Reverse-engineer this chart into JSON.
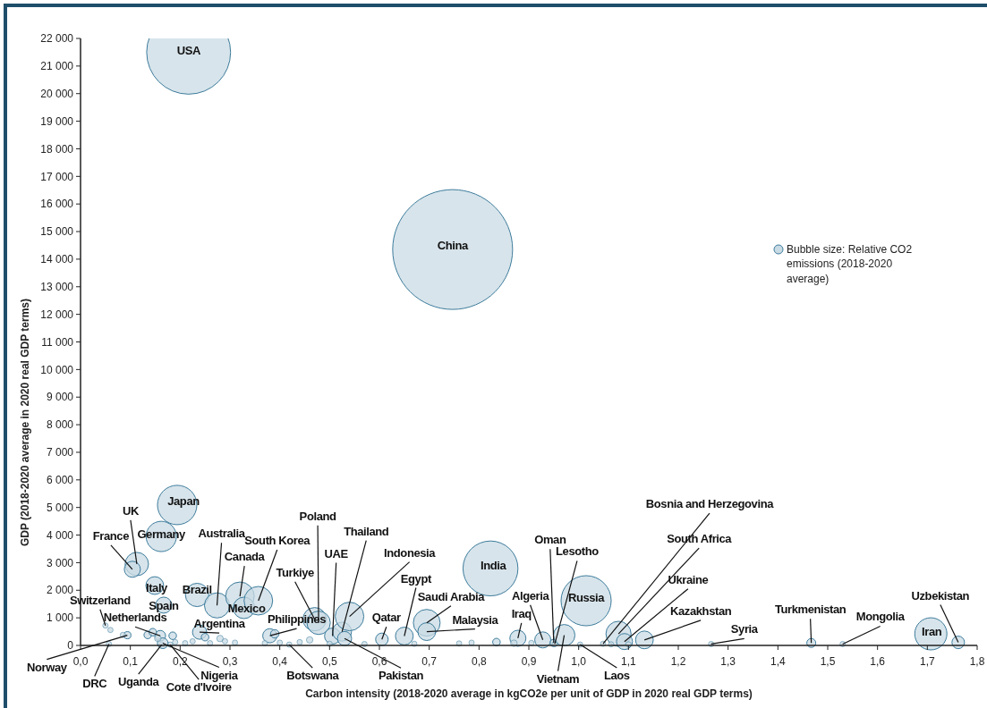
{
  "chart_data": {
    "type": "bubble",
    "xlabel": "Carbon intensity (2018-2020 average in kgCO2e per unit of GDP in 2020 real GDP terms)",
    "ylabel": "GDP (2018-2020 average in 2020 real GDP terms)",
    "xlim": [
      0,
      1.8
    ],
    "ylim": [
      0,
      22000
    ],
    "xticks": [
      {
        "value": 0,
        "label": "0,0"
      },
      {
        "value": 0.1,
        "label": "0,1"
      },
      {
        "value": 0.2,
        "label": "0,2"
      },
      {
        "value": 0.3,
        "label": "0,3"
      },
      {
        "value": 0.4,
        "label": "0,4"
      },
      {
        "value": 0.5,
        "label": "0,5"
      },
      {
        "value": 0.6,
        "label": "0,6"
      },
      {
        "value": 0.7,
        "label": "0,7"
      },
      {
        "value": 0.8,
        "label": "0,8"
      },
      {
        "value": 0.9,
        "label": "0,9"
      },
      {
        "value": 1.0,
        "label": "1,0"
      },
      {
        "value": 1.1,
        "label": "1,1"
      },
      {
        "value": 1.2,
        "label": "1,2"
      },
      {
        "value": 1.3,
        "label": "1,3"
      },
      {
        "value": 1.4,
        "label": "1,4"
      },
      {
        "value": 1.5,
        "label": "1,5"
      },
      {
        "value": 1.6,
        "label": "1,6"
      },
      {
        "value": 1.7,
        "label": "1,7"
      },
      {
        "value": 1.8,
        "label": "1,8"
      }
    ],
    "yticks": [
      0,
      {
        "value": 1000,
        "label": "1 000"
      },
      {
        "value": 2000,
        "label": "2 000"
      },
      {
        "value": 3000,
        "label": "3 000"
      },
      {
        "value": 4000,
        "label": "4 000"
      },
      {
        "value": 5000,
        "label": "5 000"
      },
      {
        "value": 6000,
        "label": "6 000"
      },
      {
        "value": 7000,
        "label": "7 000"
      },
      {
        "value": 8000,
        "label": "8 000"
      },
      {
        "value": 9000,
        "label": "9 000"
      },
      {
        "value": 10000,
        "label": "10 000"
      },
      {
        "value": 11000,
        "label": "11 000"
      },
      {
        "value": 12000,
        "label": "12 000"
      },
      {
        "value": 13000,
        "label": "13 000"
      },
      {
        "value": 14000,
        "label": "14 000"
      },
      {
        "value": 15000,
        "label": "15 000"
      },
      {
        "value": 16000,
        "label": "16 000"
      },
      {
        "value": 17000,
        "label": "17 000"
      },
      {
        "value": 18000,
        "label": "18 000"
      },
      {
        "value": 19000,
        "label": "19 000"
      },
      {
        "value": 20000,
        "label": "20 000"
      },
      {
        "value": 21000,
        "label": "21 000"
      },
      {
        "value": 22000,
        "label": "22 000"
      }
    ],
    "legend": "right",
    "grid": false,
    "series": [
      {
        "name": "Bubble size: Relative CO2 emissions (2018-2020 average)",
        "color": "#c9dbe4",
        "x": [
          0.217,
          0.747,
          0.194,
          0.162,
          0.113,
          0.104,
          0.149,
          0.167,
          0.05,
          0.16,
          0.094,
          0.057,
          0.163,
          0.18,
          0.165,
          0.239,
          0.234,
          0.274,
          0.32,
          0.328,
          0.357,
          0.47,
          0.478,
          0.38,
          0.506,
          0.525,
          0.54,
          0.53,
          0.419,
          0.605,
          0.65,
          0.695,
          0.695,
          0.823,
          0.878,
          0.928,
          0.95,
          0.952,
          0.971,
          1.015,
          1.003,
          1.049,
          1.08,
          1.092,
          1.132,
          1.266,
          1.467,
          1.53,
          1.707,
          1.762,
          0.06,
          0.085,
          0.135,
          0.145,
          0.155,
          0.185,
          0.19,
          0.21,
          0.225,
          0.25,
          0.26,
          0.28,
          0.29,
          0.31,
          0.37,
          0.39,
          0.4,
          0.44,
          0.46,
          0.5,
          0.57,
          0.67,
          0.76,
          0.785,
          0.835,
          0.87,
          0.905,
          1.065,
          1.1
        ],
        "values": [
          21500,
          14350,
          5090,
          3950,
          2950,
          2760,
          2170,
          1460,
          720,
          350,
          370,
          50,
          30,
          30,
          80,
          480,
          1830,
          1450,
          1780,
          1360,
          1620,
          950,
          820,
          350,
          340,
          500,
          1050,
          250,
          30,
          220,
          340,
          820,
          500,
          2790,
          260,
          200,
          90,
          50,
          370,
          1620,
          30,
          60,
          420,
          140,
          200,
          50,
          90,
          50,
          420,
          110,
          560,
          380,
          380,
          480,
          260,
          350,
          120,
          80,
          150,
          300,
          80,
          250,
          150,
          100,
          80,
          420,
          100,
          120,
          200,
          60,
          50,
          60,
          70,
          100,
          120,
          80,
          90,
          40,
          40
        ],
        "sizes": [
          0.49,
          1,
          0.108,
          0.064,
          0.038,
          0.018,
          0.022,
          0.018,
          0.002,
          0.008,
          0.0036,
          0.001,
          0.001,
          0.001,
          0.008,
          0.014,
          0.038,
          0.044,
          0.057,
          0.032,
          0.057,
          0.038,
          0.038,
          0.014,
          0.018,
          0.025,
          0.057,
          0.014,
          0.001,
          0.011,
          0.022,
          0.05,
          0.022,
          0.21,
          0.018,
          0.018,
          0.0036,
          0.001,
          0.032,
          0.175,
          0.002,
          0.002,
          0.044,
          0.018,
          0.022,
          0.002,
          0.0056,
          0.002,
          0.072,
          0.011,
          0.002,
          0.002,
          0.004,
          0.004,
          0.003,
          0.004,
          0.002,
          0.002,
          0.002,
          0.004,
          0.002,
          0.003,
          0.002,
          0.002,
          0.001,
          0.005,
          0.002,
          0.002,
          0.003,
          0.001,
          0.001,
          0.001,
          0.001,
          0.002,
          0.004,
          0.003,
          0.002,
          0.001,
          0.001
        ]
      }
    ],
    "annotations": [
      {
        "text": "USA",
        "x": 0.217,
        "y": 21500
      },
      {
        "text": "China",
        "x": 0.747,
        "y": 14350
      },
      {
        "text": "Japan",
        "x": 0.194,
        "y": 5090
      },
      {
        "text": "Germany",
        "x": 0.162,
        "y": 3950
      },
      {
        "text": "UK",
        "x": 0.113,
        "y": 2950
      },
      {
        "text": "France",
        "x": 0.104,
        "y": 2760
      },
      {
        "text": "Italy",
        "x": 0.149,
        "y": 2170
      },
      {
        "text": "Spain",
        "x": 0.167,
        "y": 1460
      },
      {
        "text": "Switzerland",
        "x": 0.05,
        "y": 720
      },
      {
        "text": "Netherlands",
        "x": 0.16,
        "y": 350
      },
      {
        "text": "Norway",
        "x": 0.094,
        "y": 370
      },
      {
        "text": "DRC",
        "x": 0.057,
        "y": 50
      },
      {
        "text": "Uganda",
        "x": 0.163,
        "y": 30
      },
      {
        "text": "Cote d'Ivoire",
        "x": 0.18,
        "y": 30
      },
      {
        "text": "Nigeria",
        "x": 0.165,
        "y": 80
      },
      {
        "text": "Argentina",
        "x": 0.239,
        "y": 480
      },
      {
        "text": "Brazil",
        "x": 0.234,
        "y": 1830
      },
      {
        "text": "Australia",
        "x": 0.274,
        "y": 1450
      },
      {
        "text": "Canada",
        "x": 0.32,
        "y": 1780
      },
      {
        "text": "Mexico",
        "x": 0.328,
        "y": 1360
      },
      {
        "text": "South Korea",
        "x": 0.357,
        "y": 1620
      },
      {
        "text": "Turkiye",
        "x": 0.47,
        "y": 950
      },
      {
        "text": "Poland",
        "x": 0.478,
        "y": 820
      },
      {
        "text": "Philippines",
        "x": 0.38,
        "y": 350
      },
      {
        "text": "UAE",
        "x": 0.506,
        "y": 340
      },
      {
        "text": "Thailand",
        "x": 0.525,
        "y": 500
      },
      {
        "text": "Indonesia",
        "x": 0.54,
        "y": 1050
      },
      {
        "text": "Pakistan",
        "x": 0.53,
        "y": 250
      },
      {
        "text": "Botswana",
        "x": 0.419,
        "y": 30
      },
      {
        "text": "Qatar",
        "x": 0.605,
        "y": 220
      },
      {
        "text": "Egypt",
        "x": 0.65,
        "y": 340
      },
      {
        "text": "Saudi Arabia",
        "x": 0.695,
        "y": 820
      },
      {
        "text": "Malaysia",
        "x": 0.695,
        "y": 500
      },
      {
        "text": "India",
        "x": 0.823,
        "y": 2790
      },
      {
        "text": "Iraq",
        "x": 0.878,
        "y": 260
      },
      {
        "text": "Algeria",
        "x": 0.928,
        "y": 200
      },
      {
        "text": "Oman",
        "x": 0.95,
        "y": 90
      },
      {
        "text": "Lesotho",
        "x": 0.952,
        "y": 50
      },
      {
        "text": "Vietnam",
        "x": 0.971,
        "y": 370
      },
      {
        "text": "Russia",
        "x": 1.015,
        "y": 1620
      },
      {
        "text": "Laos",
        "x": 1.003,
        "y": 30
      },
      {
        "text": "Bosnia and Herzegovina",
        "x": 1.049,
        "y": 60
      },
      {
        "text": "South Africa",
        "x": 1.08,
        "y": 420
      },
      {
        "text": "Ukraine",
        "x": 1.092,
        "y": 140
      },
      {
        "text": "Kazakhstan",
        "x": 1.132,
        "y": 200
      },
      {
        "text": "Syria",
        "x": 1.266,
        "y": 50
      },
      {
        "text": "Turkmenistan",
        "x": 1.467,
        "y": 90
      },
      {
        "text": "Mongolia",
        "x": 1.53,
        "y": 50
      },
      {
        "text": "Iran",
        "x": 1.707,
        "y": 420
      },
      {
        "text": "Uzbekistan",
        "x": 1.762,
        "y": 110
      }
    ]
  }
}
